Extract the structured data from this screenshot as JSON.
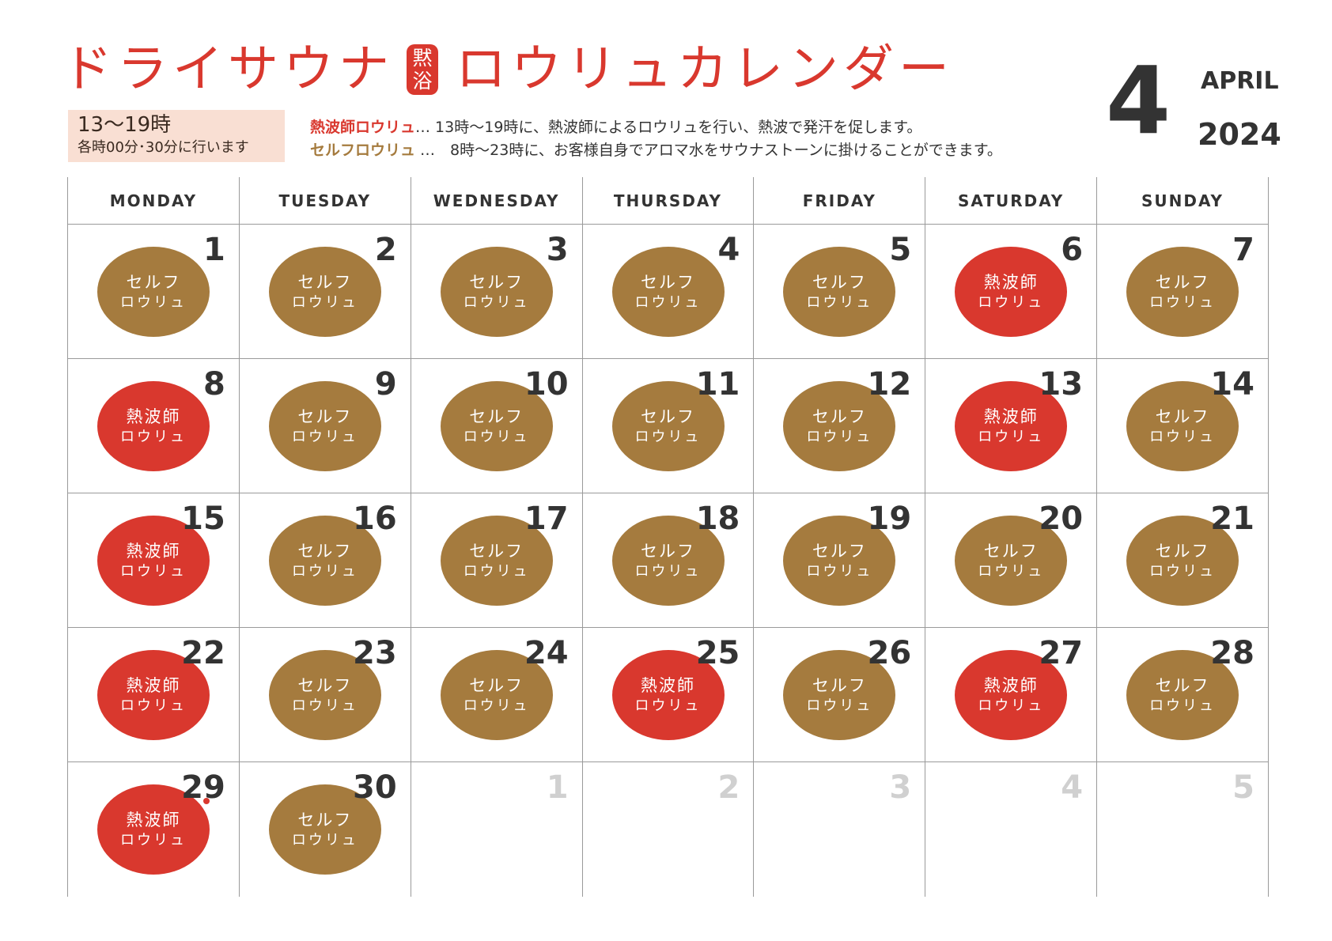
{
  "header": {
    "title_part1": "ドライサウナ",
    "badge_line1": "黙",
    "badge_line2": "浴",
    "title_part2": "ロウリュカレンダー",
    "time_range": "13〜19時",
    "time_note": "各時00分･30分に行います",
    "legend": [
      {
        "label": "熱波師ロウリュ",
        "text": "… 13時〜19時に、熱波師によるロウリュを行い、熱波で発汗を促します。"
      },
      {
        "label": "セルフロウリュ",
        "text": " …　8時〜23時に、お客様自身でアロマ水をサウナストーンに掛けることができます。"
      }
    ],
    "month_number": "4",
    "month_name": "APRIL",
    "year": "2024"
  },
  "colors": {
    "hot": "#d9382e",
    "self": "#a57b3e",
    "badge_bg": "#f9dfd3"
  },
  "calendar": {
    "weekdays": [
      "MONDAY",
      "TUESDAY",
      "WEDNESDAY",
      "THURSDAY",
      "FRIDAY",
      "SATURDAY",
      "SUNDAY"
    ],
    "labels": {
      "hot": [
        "熱波師",
        "ロウリュ"
      ],
      "self": [
        "セルフ",
        "ロウリュ"
      ]
    },
    "weeks": [
      [
        {
          "day": "1",
          "type": "self"
        },
        {
          "day": "2",
          "type": "self"
        },
        {
          "day": "3",
          "type": "self"
        },
        {
          "day": "4",
          "type": "self"
        },
        {
          "day": "5",
          "type": "self"
        },
        {
          "day": "6",
          "type": "hot"
        },
        {
          "day": "7",
          "type": "self"
        }
      ],
      [
        {
          "day": "8",
          "type": "hot"
        },
        {
          "day": "9",
          "type": "self"
        },
        {
          "day": "10",
          "type": "self"
        },
        {
          "day": "11",
          "type": "self"
        },
        {
          "day": "12",
          "type": "self"
        },
        {
          "day": "13",
          "type": "hot"
        },
        {
          "day": "14",
          "type": "self"
        }
      ],
      [
        {
          "day": "15",
          "type": "hot"
        },
        {
          "day": "16",
          "type": "self"
        },
        {
          "day": "17",
          "type": "self"
        },
        {
          "day": "18",
          "type": "self"
        },
        {
          "day": "19",
          "type": "self"
        },
        {
          "day": "20",
          "type": "self"
        },
        {
          "day": "21",
          "type": "self"
        }
      ],
      [
        {
          "day": "22",
          "type": "hot"
        },
        {
          "day": "23",
          "type": "self"
        },
        {
          "day": "24",
          "type": "self"
        },
        {
          "day": "25",
          "type": "hot"
        },
        {
          "day": "26",
          "type": "self"
        },
        {
          "day": "27",
          "type": "hot"
        },
        {
          "day": "28",
          "type": "self"
        }
      ],
      [
        {
          "day": "29",
          "type": "hot",
          "dot": true
        },
        {
          "day": "30",
          "type": "self"
        },
        {
          "day": "1",
          "type": "next"
        },
        {
          "day": "2",
          "type": "next"
        },
        {
          "day": "3",
          "type": "next"
        },
        {
          "day": "4",
          "type": "next"
        },
        {
          "day": "5",
          "type": "next"
        }
      ]
    ]
  }
}
